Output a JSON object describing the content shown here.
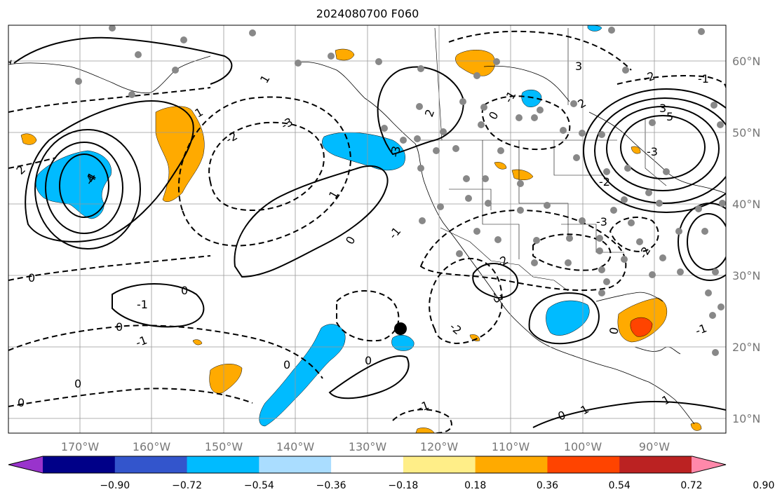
{
  "title": "2024080700 F060",
  "map": {
    "lon_range": [
      -180,
      -80
    ],
    "lat_range": [
      8,
      65
    ],
    "longitude_labels": [
      "170°W",
      "160°W",
      "150°W",
      "140°W",
      "130°W",
      "120°W",
      "110°W",
      "100°W",
      "90°W"
    ],
    "latitude_labels": [
      "60°N",
      "50°N",
      "40°N",
      "30°N",
      "20°N",
      "10°N"
    ],
    "gridlines": true,
    "contour_labels": [
      "1",
      "2",
      "3",
      "4",
      "5",
      "0",
      "-1",
      "-2",
      "-3",
      "-4",
      "0",
      "0",
      "0",
      "0",
      "0",
      "-1",
      "-2",
      "1",
      "2",
      "3",
      "-1",
      "-2",
      "-3",
      "1",
      "-1",
      "0",
      "-3",
      "0",
      "1",
      "-1",
      "-2",
      "-3",
      "2",
      "-1",
      "0",
      "-2",
      "-1",
      "0",
      "1",
      "0",
      "-1",
      "-2",
      "-3"
    ],
    "marker": {
      "lon": -125.5,
      "lat": 22.5,
      "color": "#000000"
    },
    "station_color": "#888888"
  },
  "colorbar": {
    "colors": [
      "#9933cc",
      "#000088",
      "#3355cc",
      "#00bbff",
      "#aaddff",
      "#ffffff",
      "#ffee88",
      "#ffaa00",
      "#ff4400",
      "#bb2222",
      "#ff88aa"
    ],
    "tick_labels": [
      "−0.90",
      "−0.72",
      "−0.54",
      "−0.36",
      "−0.18",
      "0.18",
      "0.36",
      "0.54",
      "0.72",
      "0.90"
    ]
  }
}
